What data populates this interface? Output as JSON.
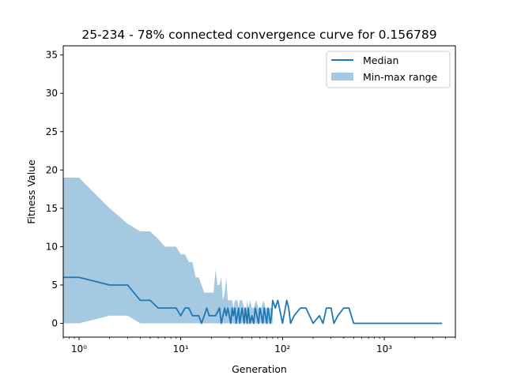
{
  "chart_data": {
    "type": "line",
    "title": "25-234 - 78% connected convergence curve for 0.156789",
    "xlabel": "Generation",
    "ylabel": "Fitness Value",
    "xscale": "log",
    "xlim": [
      0.7,
      5000
    ],
    "ylim": [
      -1.8,
      36.2
    ],
    "grid": false,
    "legend_position": "top-right",
    "x_ticks": [
      {
        "value": 1,
        "label": "10⁰"
      },
      {
        "value": 10,
        "label": "10¹"
      },
      {
        "value": 100,
        "label": "10²"
      },
      {
        "value": 1000,
        "label": "10³"
      }
    ],
    "y_ticks": [
      0,
      5,
      10,
      15,
      20,
      25,
      30,
      35
    ],
    "series": [
      {
        "name": "Median",
        "kind": "line",
        "color": "#1f77b4",
        "x": [
          0.5,
          1,
          2,
          3,
          4,
          5,
          6,
          8,
          9,
          10,
          11,
          12,
          13,
          15,
          16,
          17,
          18,
          19,
          20,
          22,
          24,
          25,
          26,
          27,
          28,
          29,
          30,
          31,
          32,
          33,
          34,
          35,
          36,
          37,
          38,
          39,
          40,
          41,
          42,
          43,
          44,
          45,
          46,
          47,
          48,
          50,
          52,
          54,
          56,
          58,
          60,
          62,
          64,
          66,
          68,
          70,
          72,
          74,
          76,
          78,
          80,
          85,
          90,
          100,
          110,
          115,
          120,
          130,
          150,
          170,
          200,
          230,
          250,
          270,
          300,
          320,
          350,
          400,
          450,
          500,
          600,
          800,
          1000,
          1500,
          2000,
          3000,
          3700
        ],
        "y": [
          6,
          6,
          5,
          5,
          3,
          3,
          2,
          2,
          2,
          1,
          2,
          2,
          1,
          1,
          0,
          1,
          2,
          1,
          1,
          1,
          2,
          0,
          1,
          2,
          1,
          2,
          1,
          0,
          2,
          1,
          2,
          0,
          1,
          2,
          0,
          1,
          2,
          1,
          0,
          2,
          1,
          0,
          2,
          1,
          0,
          1,
          0,
          2,
          1,
          0,
          2,
          1,
          0,
          2,
          1,
          0,
          2,
          1,
          0,
          1,
          3,
          2,
          3,
          0,
          3,
          2,
          0,
          1,
          2,
          2,
          0,
          1,
          0,
          2,
          2,
          0,
          1,
          2,
          2,
          0,
          0,
          0,
          0,
          0,
          0,
          0,
          0
        ]
      },
      {
        "name": "Min-max range",
        "kind": "band",
        "color": "#1f77b4",
        "x": [
          0.5,
          1,
          2,
          3,
          4,
          5,
          6,
          7,
          9,
          10,
          11,
          12,
          13,
          14,
          15,
          16,
          17,
          18,
          20,
          21,
          22,
          23,
          24,
          25,
          26,
          27,
          28,
          29,
          30,
          31,
          32,
          33,
          34,
          35,
          36,
          37,
          38,
          39,
          40,
          42,
          44,
          45,
          46,
          48,
          50,
          52,
          55,
          58,
          60,
          62,
          65,
          68,
          70,
          72,
          75,
          78,
          80
        ],
        "min": [
          0,
          0,
          1,
          1,
          0,
          0,
          0,
          0,
          0,
          0,
          0,
          0,
          0,
          0,
          0,
          0,
          0,
          0,
          0,
          0,
          0,
          0,
          0,
          0,
          0,
          0,
          0,
          0,
          0,
          0,
          0,
          0,
          0,
          0,
          0,
          0,
          0,
          0,
          0,
          0,
          0,
          0,
          0,
          0,
          0,
          0,
          0,
          0,
          0,
          0,
          0,
          0,
          0,
          0,
          0,
          0,
          0
        ],
        "max": [
          19,
          19,
          15,
          13,
          12,
          12,
          11,
          10,
          10,
          9,
          9,
          8,
          8,
          6,
          6,
          5,
          4,
          4,
          4,
          4,
          7,
          5,
          5,
          6,
          3,
          4,
          6,
          3,
          3,
          3,
          3,
          2,
          3,
          3,
          3,
          2,
          3,
          3,
          3,
          2,
          2,
          3,
          2,
          3,
          2,
          2,
          3,
          2,
          2,
          2,
          3,
          2,
          2,
          2,
          2,
          2,
          2
        ]
      }
    ]
  }
}
